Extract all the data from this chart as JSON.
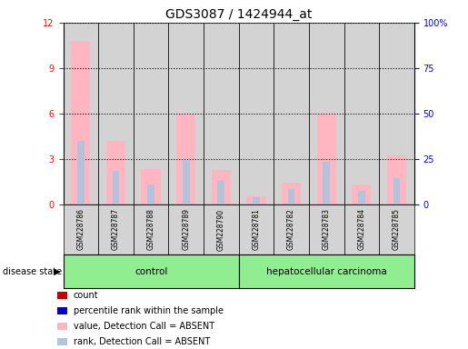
{
  "title": "GDS3087 / 1424944_at",
  "samples": [
    "GSM228786",
    "GSM228787",
    "GSM228788",
    "GSM228789",
    "GSM228790",
    "GSM228781",
    "GSM228782",
    "GSM228783",
    "GSM228784",
    "GSM228785"
  ],
  "pink_bars": [
    10.8,
    4.2,
    2.3,
    5.95,
    2.25,
    0.5,
    1.4,
    5.95,
    1.3,
    3.2
  ],
  "blue_bars": [
    4.2,
    2.2,
    1.3,
    2.9,
    1.55,
    0.45,
    1.0,
    2.8,
    0.9,
    1.75
  ],
  "ylim_left": [
    0,
    12
  ],
  "ylim_right": [
    0,
    100
  ],
  "yticks_left": [
    0,
    3,
    6,
    9,
    12
  ],
  "ytick_labels_right": [
    "0",
    "25",
    "50",
    "75",
    "100%"
  ],
  "bar_bg_color": "#D3D3D3",
  "green_color": "#90EE90",
  "legend_items": [
    {
      "label": "count",
      "color": "#CC0000"
    },
    {
      "label": "percentile rank within the sample",
      "color": "#0000CC"
    },
    {
      "label": "value, Detection Call = ABSENT",
      "color": "#FFB6C1"
    },
    {
      "label": "rank, Detection Call = ABSENT",
      "color": "#B0C4DE"
    }
  ],
  "title_fontsize": 10,
  "tick_fontsize": 7,
  "sample_fontsize": 5.5
}
